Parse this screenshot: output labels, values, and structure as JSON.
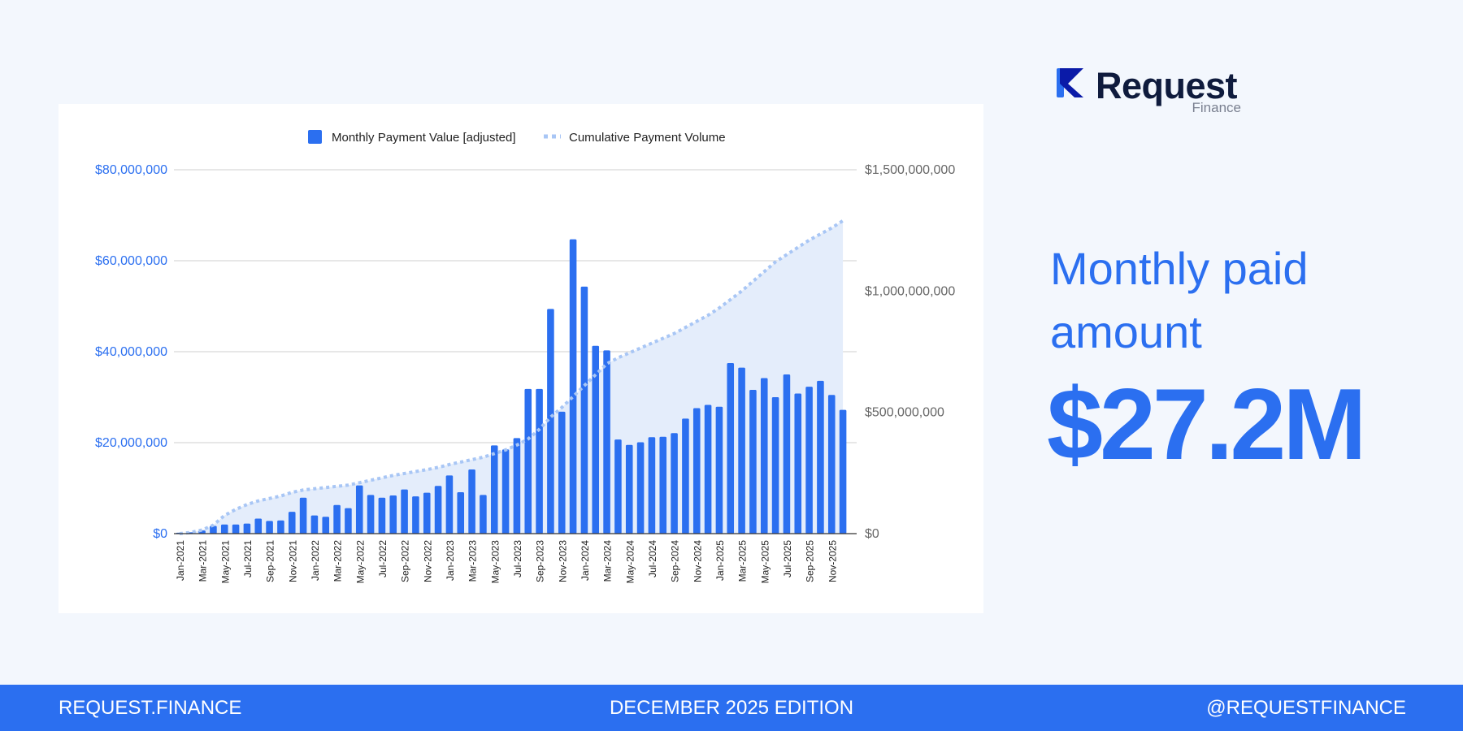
{
  "brand": {
    "name": "Request",
    "sub": "Finance"
  },
  "headline": "Monthly paid amount",
  "big_value": "$27.2M",
  "footer": {
    "left": "REQUEST.FINANCE",
    "center": "DECEMBER 2025  EDITION",
    "right": "@REQUESTFINANCE"
  },
  "colors": {
    "accent": "#2b6ff0",
    "bar": "#2b6ff0",
    "cumulative": "#a8c6f5",
    "area": "#e4edfb"
  },
  "chart_data": {
    "type": "bar",
    "title": "",
    "legend_position": "top",
    "grid": true,
    "categories": [
      "Jan-2021",
      "Feb-2021",
      "Mar-2021",
      "Apr-2021",
      "May-2021",
      "Jun-2021",
      "Jul-2021",
      "Aug-2021",
      "Sep-2021",
      "Oct-2021",
      "Nov-2021",
      "Dec-2021",
      "Jan-2022",
      "Feb-2022",
      "Mar-2022",
      "Apr-2022",
      "May-2022",
      "Jun-2022",
      "Jul-2022",
      "Aug-2022",
      "Sep-2022",
      "Oct-2022",
      "Nov-2022",
      "Dec-2022",
      "Jan-2023",
      "Feb-2023",
      "Mar-2023",
      "Apr-2023",
      "May-2023",
      "Jun-2023",
      "Jul-2023",
      "Aug-2023",
      "Sep-2023",
      "Oct-2023",
      "Nov-2023",
      "Dec-2023",
      "Jan-2024",
      "Feb-2024",
      "Mar-2024",
      "Apr-2024",
      "May-2024",
      "Jun-2024",
      "Jul-2024",
      "Aug-2024",
      "Sep-2024",
      "Oct-2024",
      "Nov-2024",
      "Dec-2024",
      "Jan-2025",
      "Feb-2025",
      "Mar-2025",
      "Apr-2025",
      "May-2025",
      "Jun-2025",
      "Jul-2025",
      "Aug-2025",
      "Sep-2025",
      "Oct-2025",
      "Nov-2025",
      "Dec-2025"
    ],
    "x_tick_labels": [
      "Jan-2021",
      "Mar-2021",
      "May-2021",
      "Jul-2021",
      "Sep-2021",
      "Nov-2021",
      "Jan-2022",
      "Mar-2022",
      "May-2022",
      "Jul-2022",
      "Sep-2022",
      "Nov-2022",
      "Jan-2023",
      "Mar-2023",
      "May-2023",
      "Jul-2023",
      "Sep-2023",
      "Nov-2023",
      "Jan-2024",
      "Mar-2024",
      "May-2024",
      "Jul-2024",
      "Sep-2024",
      "Nov-2024",
      "Jan-2025",
      "Mar-2025",
      "May-2025",
      "Jul-2025",
      "Sep-2025",
      "Nov-2025"
    ],
    "series": [
      {
        "name": "Monthly Payment Value [adjusted]",
        "type": "bar",
        "axis": "left",
        "values": [
          200000,
          300000,
          700000,
          1700000,
          2000000,
          2000000,
          2200000,
          3300000,
          2800000,
          2900000,
          4800000,
          7900000,
          4000000,
          3700000,
          6300000,
          5600000,
          10600000,
          8500000,
          7900000,
          8400000,
          9700000,
          8200000,
          9000000,
          10500000,
          12800000,
          9100000,
          14100000,
          8500000,
          19400000,
          18500000,
          21000000,
          31800000,
          31800000,
          49400000,
          26800000,
          64700000,
          54300000,
          41300000,
          40300000,
          20700000,
          19500000,
          20100000,
          21200000,
          21300000,
          22100000,
          25300000,
          27600000,
          28300000,
          27900000,
          37500000,
          36500000,
          31600000,
          34200000,
          30000000,
          35000000,
          30800000,
          32300000,
          33600000,
          30500000,
          27200000
        ]
      },
      {
        "name": "Cumulative Payment Volume",
        "type": "line",
        "axis": "right",
        "style": "dotted",
        "values": [
          0,
          5000000,
          15000000,
          35000000,
          75000000,
          100000000,
          120000000,
          135000000,
          145000000,
          155000000,
          170000000,
          180000000,
          185000000,
          190000000,
          195000000,
          200000000,
          210000000,
          220000000,
          230000000,
          240000000,
          248000000,
          256000000,
          264000000,
          273000000,
          285000000,
          295000000,
          305000000,
          315000000,
          330000000,
          345000000,
          365000000,
          390000000,
          430000000,
          480000000,
          520000000,
          565000000,
          610000000,
          655000000,
          700000000,
          725000000,
          745000000,
          765000000,
          785000000,
          805000000,
          825000000,
          850000000,
          875000000,
          900000000,
          930000000,
          965000000,
          1000000000,
          1040000000,
          1080000000,
          1120000000,
          1150000000,
          1180000000,
          1210000000,
          1235000000,
          1260000000,
          1290000000
        ]
      }
    ],
    "y_left": {
      "min": 0,
      "max": 80000000,
      "ticks": [
        0,
        20000000,
        40000000,
        60000000,
        80000000
      ],
      "tick_labels": [
        "$0",
        "$20,000,000",
        "$40,000,000",
        "$60,000,000",
        "$80,000,000"
      ]
    },
    "y_right": {
      "min": 0,
      "max": 1500000000,
      "ticks": [
        0,
        500000000,
        1000000000,
        1500000000
      ],
      "tick_labels": [
        "$0",
        "$500,000,000",
        "$1,000,000,000",
        "$1,500,000,000"
      ]
    }
  }
}
